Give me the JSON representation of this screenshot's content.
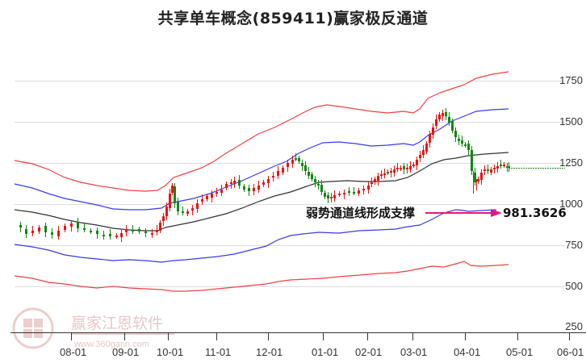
{
  "title": "共享单车概念(859411)赢家极反通道",
  "watermark": {
    "brand": "赢家江恩软件",
    "url": "www.360gann.com",
    "seal_chars": [
      "江",
      "赢",
      "恩",
      "家"
    ]
  },
  "annotation": {
    "text": "弱势通道线形成支撑",
    "value": "981.3626",
    "arrow_color": "#e0197d"
  },
  "colors": {
    "outer_band": "#f04040",
    "inner_band": "#3a3ae8",
    "mid_line": "#333333",
    "up_candle": "#ee1111",
    "down_candle": "#118811",
    "last_price_line": "#228822",
    "grid": "#dddddd"
  },
  "chart_data": {
    "type": "candlestick",
    "title": "共享单车概念(859411)赢家极反通道",
    "xlabel": "",
    "ylabel": "",
    "ylim": [
      250,
      1850
    ],
    "y_ticks": [
      1750,
      1500,
      1250,
      1000,
      750,
      500,
      250
    ],
    "x_ticks": [
      "08-01",
      "09-01",
      "10-01",
      "11-01",
      "12-01",
      "01-01",
      "02-01",
      "03-01",
      "04-01",
      "05-01",
      "06-01"
    ],
    "grid": "horizontal",
    "legend": "none",
    "series": [
      {
        "name": "outer_upper_band",
        "color": "#f04040",
        "x": [
          "07-10",
          "08-01",
          "08-20",
          "09-01",
          "09-20",
          "10-01",
          "10-10",
          "10-20",
          "11-01",
          "11-15",
          "12-01",
          "12-15",
          "01-01",
          "01-15",
          "02-01",
          "02-15",
          "03-01",
          "03-10",
          "03-20",
          "04-01",
          "04-15",
          "05-01"
        ],
        "values": [
          1150,
          1120,
          1060,
          1040,
          1000,
          1010,
          1060,
          1110,
          1190,
          1290,
          1360,
          1450,
          1490,
          1480,
          1450,
          1460,
          1460,
          1540,
          1640,
          1720,
          1780,
          1830
        ]
      },
      {
        "name": "inner_upper_band",
        "color": "#3a3ae8",
        "x": [
          "07-10",
          "08-01",
          "08-20",
          "09-01",
          "09-20",
          "10-01",
          "10-10",
          "10-20",
          "11-01",
          "11-15",
          "12-01",
          "12-15",
          "01-01",
          "01-15",
          "02-01",
          "02-15",
          "03-01",
          "03-10",
          "03-20",
          "04-01",
          "04-15",
          "05-01"
        ],
        "values": [
          990,
          960,
          910,
          890,
          870,
          880,
          930,
          970,
          1010,
          1090,
          1150,
          1230,
          1260,
          1250,
          1230,
          1250,
          1260,
          1320,
          1410,
          1500,
          1560,
          1600
        ]
      },
      {
        "name": "middle_line",
        "color": "#333333",
        "x": [
          "07-10",
          "08-01",
          "08-20",
          "09-01",
          "09-20",
          "10-01",
          "10-10",
          "10-20",
          "11-01",
          "11-15",
          "12-01",
          "12-15",
          "01-01",
          "01-15",
          "02-01",
          "02-15",
          "03-01",
          "03-10",
          "03-20",
          "04-01",
          "04-15",
          "05-01"
        ],
        "values": [
          990,
          970,
          930,
          900,
          890,
          895,
          930,
          960,
          1000,
          1050,
          1110,
          1170,
          1220,
          1210,
          1215,
          1220,
          1230,
          1260,
          1290,
          1300,
          1310,
          1325
        ]
      },
      {
        "name": "inner_lower_band",
        "color": "#3a3ae8",
        "x": [
          "07-10",
          "08-01",
          "08-20",
          "09-01",
          "09-20",
          "10-01",
          "10-10",
          "10-20",
          "11-01",
          "11-15",
          "12-01",
          "12-15",
          "01-01",
          "01-15",
          "02-01",
          "02-15",
          "03-01",
          "03-10",
          "03-20",
          "04-01",
          "04-15",
          "05-01"
        ],
        "values": [
          780,
          760,
          720,
          700,
          700,
          700,
          710,
          720,
          750,
          790,
          840,
          860,
          860,
          870,
          870,
          885,
          900,
          920,
          930,
          985,
          975,
          990
        ]
      },
      {
        "name": "outer_lower_band",
        "color": "#f04040",
        "x": [
          "07-10",
          "08-01",
          "08-20",
          "09-01",
          "09-20",
          "10-01",
          "10-10",
          "10-20",
          "11-01",
          "11-15",
          "12-01",
          "12-15",
          "01-01",
          "01-15",
          "02-01",
          "02-15",
          "03-01",
          "03-10",
          "03-20",
          "04-01",
          "04-15",
          "05-01"
        ],
        "values": [
          590,
          570,
          530,
          520,
          510,
          500,
          500,
          505,
          530,
          560,
          580,
          590,
          580,
          600,
          600,
          610,
          625,
          640,
          660,
          660,
          655,
          665
        ]
      },
      {
        "name": "close_price",
        "color": "#228822",
        "x": [
          "07-10",
          "08-01",
          "08-20",
          "09-01",
          "09-20",
          "10-01",
          "10-05",
          "10-10",
          "10-20",
          "11-01",
          "11-10",
          "11-20",
          "12-01",
          "12-10",
          "12-20",
          "01-01",
          "01-05",
          "01-15",
          "02-01",
          "02-15",
          "03-01",
          "03-10",
          "03-15",
          "03-20",
          "04-01",
          "04-05",
          "04-10",
          "04-20",
          "05-01"
        ],
        "values": [
          890,
          860,
          870,
          830,
          840,
          860,
          1110,
          970,
          1040,
          1110,
          1160,
          1120,
          1230,
          1280,
          1220,
          1070,
          1050,
          1090,
          1110,
          1160,
          1210,
          1340,
          1530,
          1520,
          1360,
          1090,
          1220,
          1240,
          1250
        ]
      }
    ],
    "last_price": 1250,
    "support_value": 981.3626
  }
}
